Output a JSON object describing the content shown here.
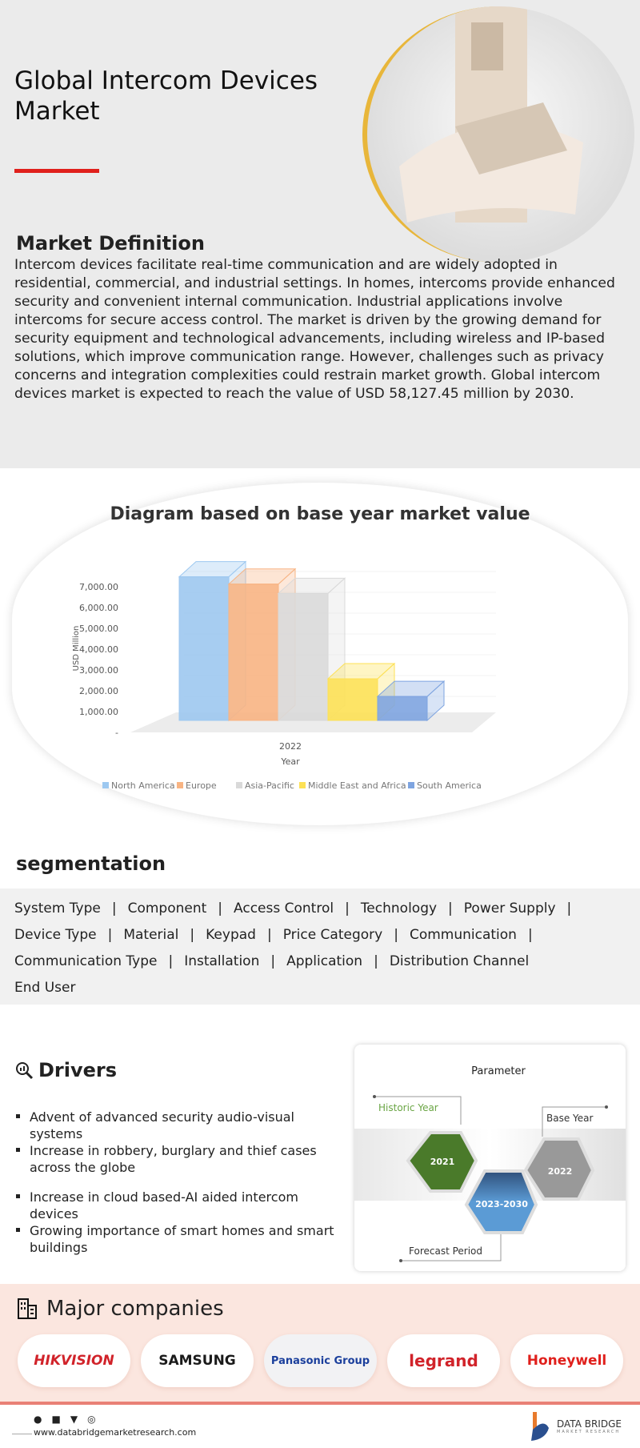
{
  "header": {
    "title": "Global Intercom Devices Market",
    "definition_heading": "Market Definition",
    "definition": "Intercom devices facilitate real-time communication and are widely adopted in residential, commercial, and industrial settings. In homes, intercoms provide enhanced security and convenient internal communication. Industrial applications involve intercoms for secure access control. The market is driven by the growing demand for security equipment and technological advancements, including wireless and IP-based solutions, which improve communication range. However, challenges such as privacy concerns and integration complexities could restrain market growth. Global intercom devices market is expected to reach the value of USD 58,127.45 million by 2030."
  },
  "chart_data": {
    "type": "bar",
    "title": "Diagram based on base year market value",
    "xlabel": "Year",
    "ylabel": "USD Million",
    "categories": [
      "2022"
    ],
    "yticks": [
      "-",
      "1,000.00",
      "2,000.00",
      "3,000.00",
      "4,000.00",
      "5,000.00",
      "6,000.00",
      "7,000.00"
    ],
    "ylim": [
      0,
      7000
    ],
    "legend": "bottom",
    "series": [
      {
        "name": "North America",
        "values": [
          6900
        ],
        "color": "#9dc8f0"
      },
      {
        "name": "Europe",
        "values": [
          6550
        ],
        "color": "#f8b483"
      },
      {
        "name": "Asia-Pacific",
        "values": [
          6100
        ],
        "color": "#d9d9d9"
      },
      {
        "name": "Middle East and Africa",
        "values": [
          2000
        ],
        "color": "#fde155"
      },
      {
        "name": "South America",
        "values": [
          1150
        ],
        "color": "#7ea4e0"
      }
    ]
  },
  "segmentation": {
    "heading": "segmentation",
    "rows": [
      [
        "System Type",
        "Component",
        "Access Control",
        "Technology",
        "Power Supply"
      ],
      [
        "Device Type",
        "Material",
        "Keypad",
        "Price Category",
        "Communication"
      ],
      [
        "Communication Type",
        "Installation",
        "Application",
        "Distribution Channel"
      ],
      [
        "End User"
      ]
    ]
  },
  "drivers": {
    "heading": "Drivers",
    "items": [
      "Advent of advanced security audio-visual systems",
      "Increase in robbery, burglary and thief cases across the globe",
      "Increase in cloud based-AI aided intercom devices",
      "Growing importance of smart homes and smart buildings"
    ]
  },
  "parameter": {
    "title": "Parameter",
    "historic_label": "Historic Year",
    "historic": "2021",
    "base_label": "Base Year",
    "base": "2022",
    "forecast_label": "Forecast Period",
    "forecast": "2023-2030"
  },
  "companies": {
    "heading": "Major companies",
    "items": [
      {
        "name": "HIKVISION",
        "color": "#d1232a"
      },
      {
        "name": "SAMSUNG",
        "color": "#1a1a1a"
      },
      {
        "name": "Panasonic Group",
        "color": "#1b3f9c"
      },
      {
        "name": "legrand",
        "color": "#d1232a"
      },
      {
        "name": "Honeywell",
        "color": "#e0201c"
      }
    ]
  },
  "footer": {
    "url": "www.databridgemarketresearch.com",
    "brand": "DATA BRIDGE",
    "brand_sub": "MARKET RESEARCH"
  }
}
